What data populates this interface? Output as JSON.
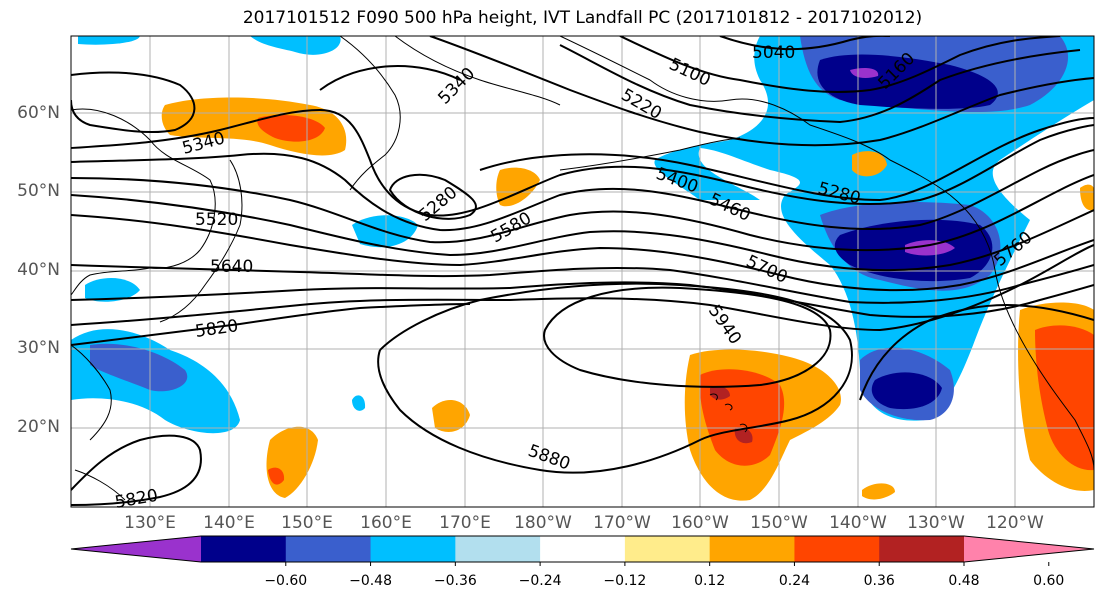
{
  "title": "2017101512 F090 500 hPa height, IVT Landfall PC (2017101812 - 2017102012)",
  "lat_labels": [
    "60°N",
    "50°N",
    "40°N",
    "30°N",
    "20°N"
  ],
  "lon_labels": [
    "130°E",
    "140°E",
    "150°E",
    "160°E",
    "170°E",
    "180°W",
    "170°W",
    "160°W",
    "150°W",
    "140°W",
    "130°W",
    "120°W"
  ],
  "contour_labels": [
    "5040",
    "5100",
    "5160",
    "5220",
    "5280",
    "5340",
    "5340",
    "5280",
    "5520",
    "5400",
    "5460",
    "5580",
    "5640",
    "5700",
    "5760",
    "5820",
    "5940",
    "5880",
    "5820"
  ],
  "colorbar": {
    "ticks": [
      "−0.60",
      "−0.48",
      "−0.36",
      "−0.24",
      "−0.12",
      "0.12",
      "0.24",
      "0.36",
      "0.48",
      "0.60"
    ],
    "colors": [
      "#9a32cd",
      "#00008b",
      "#3a5fcd",
      "#00bfff",
      "#b2dfee",
      "#ffffff",
      "#ffec8b",
      "#ffa500",
      "#ff4500",
      "#b22222",
      "#ff82ab"
    ]
  },
  "shading_colors": {
    "very_neg": "#9a32cd",
    "strong_neg": "#00008b",
    "mid_neg": "#3a5fcd",
    "neg": "#00bfff",
    "light_neg": "#b2dfee",
    "light_pos": "#ffec8b",
    "pos": "#ffa500",
    "mid_pos": "#ff4500",
    "strong_pos": "#b22222"
  }
}
